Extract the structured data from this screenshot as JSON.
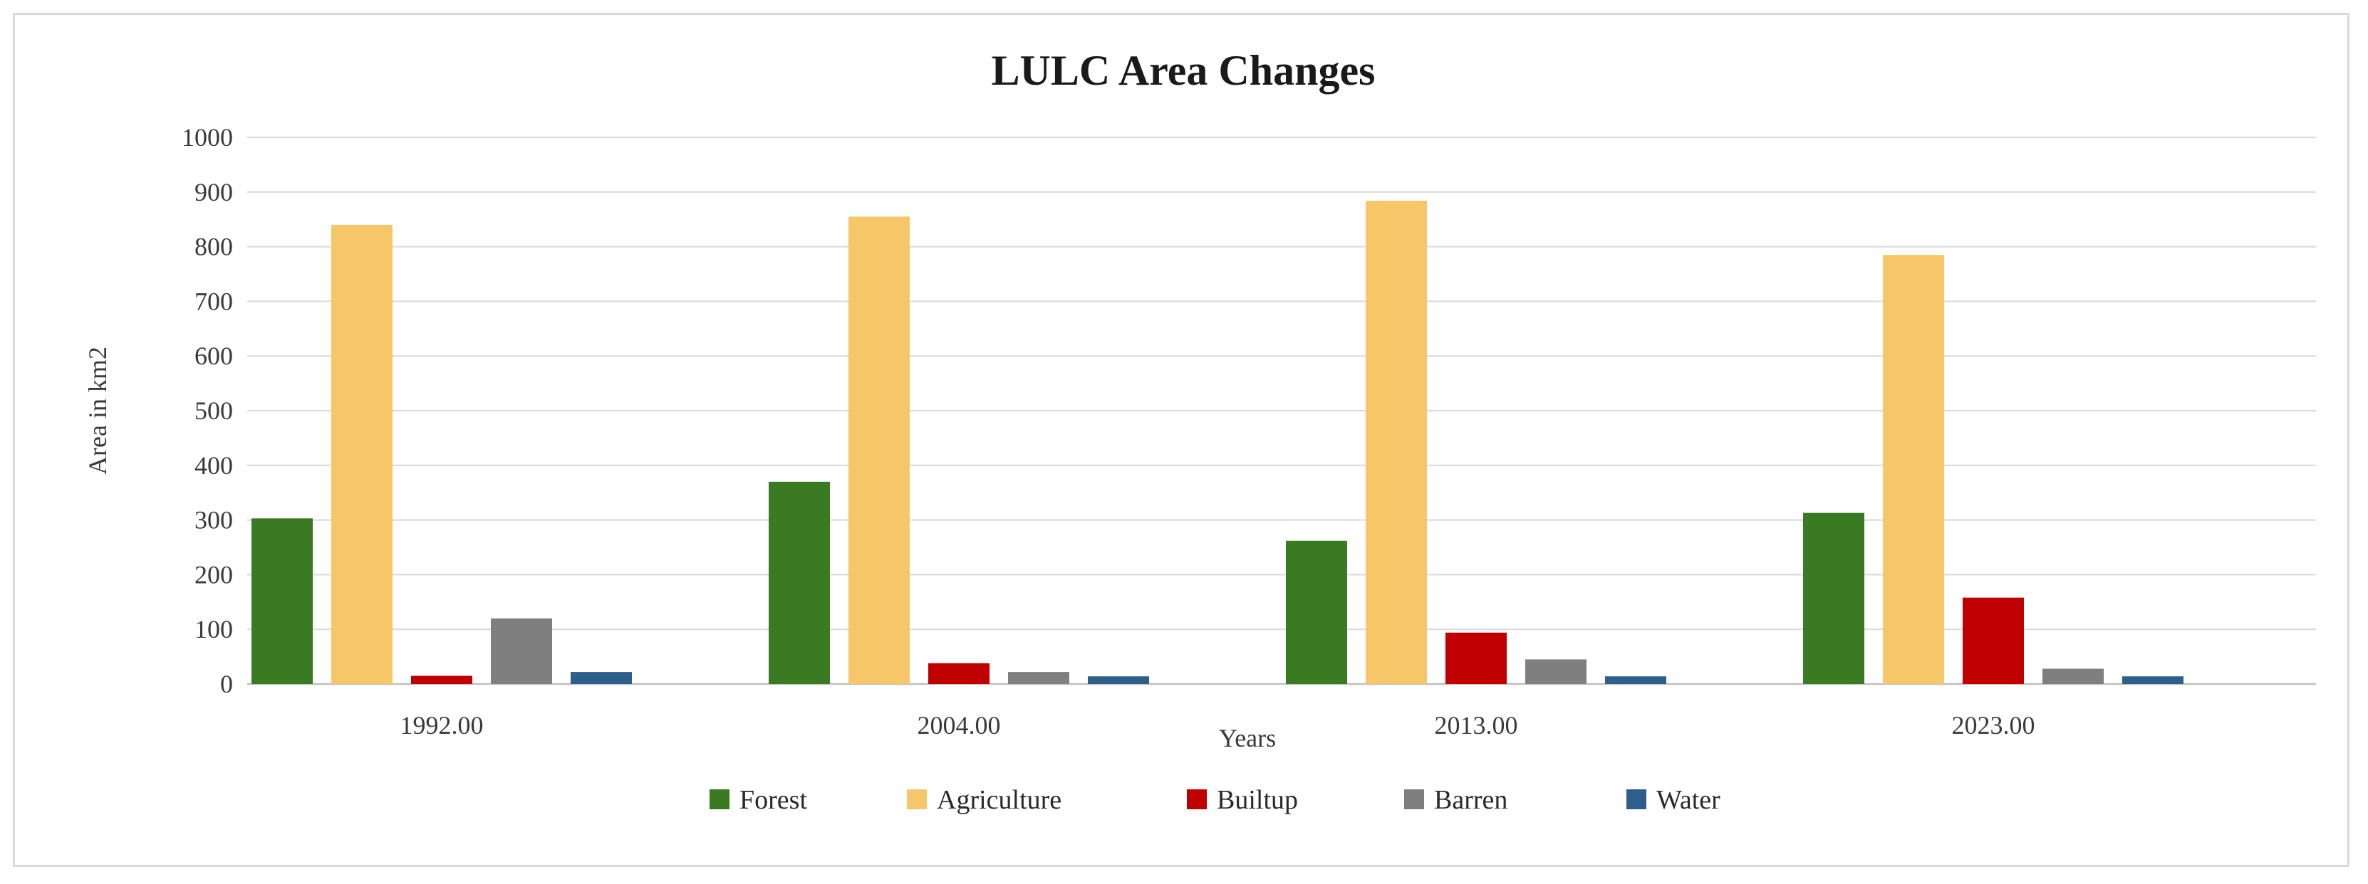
{
  "chart_data": {
    "type": "bar",
    "title": "LULC Area Changes",
    "xlabel": "Years",
    "ylabel": "Area in km2",
    "categories": [
      "1992.00",
      "2004.00",
      "2013.00",
      "2023.00"
    ],
    "ylim": [
      0,
      1000
    ],
    "yticks": [
      0,
      100,
      200,
      300,
      400,
      500,
      600,
      700,
      800,
      900,
      1000
    ],
    "grid": true,
    "legend_position": "bottom",
    "series": [
      {
        "name": "Forest",
        "color": "#3a7a23",
        "values": [
          303,
          370,
          262,
          313
        ]
      },
      {
        "name": "Agriculture",
        "color": "#f6c768",
        "values": [
          840,
          855,
          884,
          785
        ]
      },
      {
        "name": "Builtup",
        "color": "#c00000",
        "values": [
          15,
          38,
          94,
          158
        ]
      },
      {
        "name": "Barren",
        "color": "#7f7f7f",
        "values": [
          120,
          22,
          45,
          28
        ]
      },
      {
        "name": "Water",
        "color": "#2e5f8a",
        "values": [
          22,
          14,
          14,
          14
        ]
      }
    ]
  }
}
